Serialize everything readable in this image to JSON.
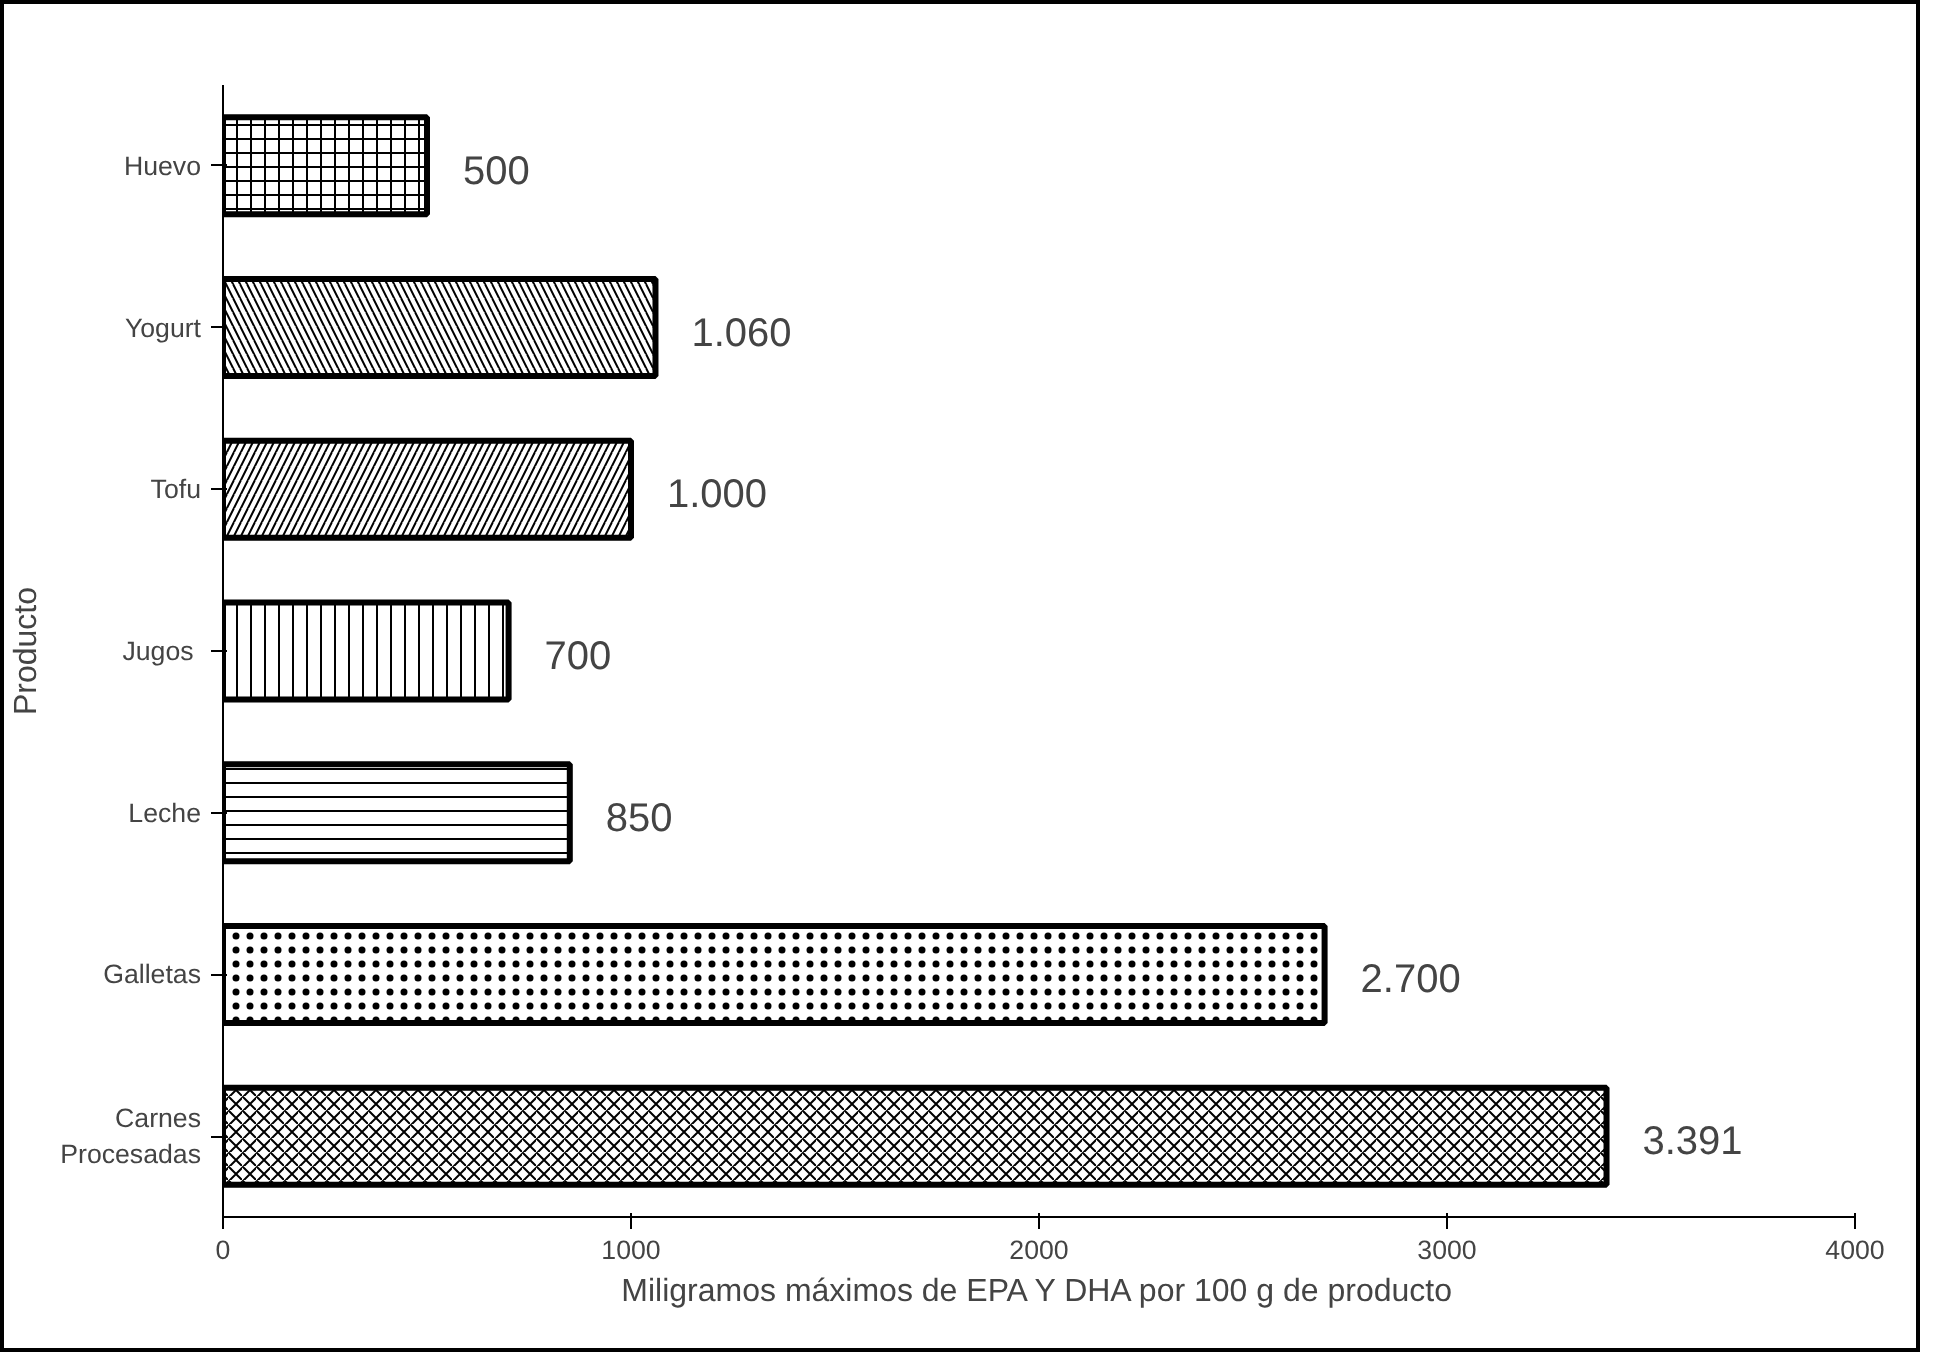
{
  "chart_data": {
    "type": "bar",
    "orientation": "horizontal",
    "xlabel": "Miligramos máximos de EPA Y DHA por 100 g de producto",
    "ylabel": "Producto",
    "categories": [
      "Huevo",
      "Yogurt",
      "Tofu",
      "Jugos ",
      "Leche",
      "Galletas",
      "Carnes Procesadas"
    ],
    "values": [
      500,
      1060,
      1000,
      700,
      850,
      2700,
      3391
    ],
    "value_labels": [
      "500",
      "1.060",
      "1.000",
      "700",
      "850",
      "2.700",
      "3.391"
    ],
    "color": "#ffffff",
    "xlim": [
      0,
      4000
    ],
    "xticks": [
      0,
      1000,
      2000,
      3000,
      4000
    ],
    "grid": false
  }
}
